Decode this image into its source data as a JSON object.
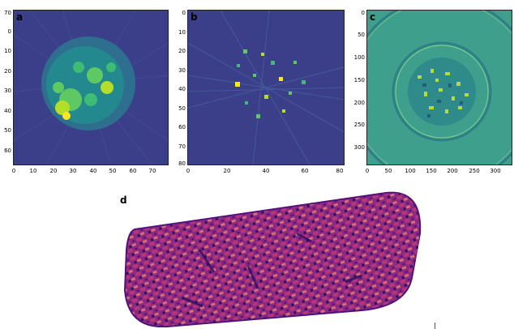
{
  "panels": [
    {
      "letter": "a",
      "y_ticks": [
        "0",
        "10",
        "20",
        "30",
        "40",
        "50",
        "60",
        "70"
      ],
      "x_ticks": [
        "0",
        "10",
        "20",
        "30",
        "40",
        "50",
        "60",
        "70"
      ],
      "x_range": [
        0,
        78
      ],
      "y_range": [
        0,
        78
      ]
    },
    {
      "letter": "b",
      "y_ticks": [
        "0",
        "10",
        "20",
        "30",
        "40",
        "50",
        "60",
        "70",
        "80"
      ],
      "x_ticks": [
        "0",
        "20",
        "40",
        "60",
        "80"
      ],
      "x_range": [
        0,
        80
      ],
      "y_range": [
        0,
        80
      ]
    },
    {
      "letter": "c",
      "y_ticks": [
        "0",
        "50",
        "100",
        "150",
        "200",
        "250",
        "300"
      ],
      "x_ticks": [
        "0",
        "50",
        "100",
        "150",
        "200",
        "250",
        "300"
      ],
      "x_range": [
        0,
        340
      ],
      "y_range": [
        0,
        340
      ]
    },
    {
      "letter": "d"
    }
  ],
  "colors": {
    "viridis_bg": "#3b3f8a",
    "viridis_mid": "#21908d",
    "viridis_high": "#fde725",
    "panel_c_bg": "#3f9f8d",
    "magma_dark": "#2d1160",
    "magma_mid": "#8c2981",
    "magma_light": "#f98e6d"
  }
}
